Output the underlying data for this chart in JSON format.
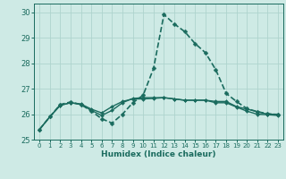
{
  "xlabel": "Humidex (Indice chaleur)",
  "xlim": [
    -0.5,
    23.5
  ],
  "ylim": [
    25.0,
    30.35
  ],
  "background_color": "#ceeae5",
  "grid_color": "#aed4ce",
  "line_color": "#1a6b5e",
  "xticks": [
    0,
    1,
    2,
    3,
    4,
    5,
    6,
    7,
    8,
    9,
    10,
    11,
    12,
    13,
    14,
    15,
    16,
    17,
    18,
    19,
    20,
    21,
    22,
    23
  ],
  "yticks": [
    25,
    26,
    27,
    28,
    29,
    30
  ],
  "series": [
    {
      "x": [
        0,
        1,
        2,
        3,
        4,
        5,
        6,
        7,
        8,
        9,
        10,
        11,
        12,
        13,
        14,
        15,
        16,
        17,
        18,
        19,
        20,
        21,
        22,
        23
      ],
      "y": [
        25.4,
        25.9,
        26.35,
        26.45,
        26.4,
        26.2,
        26.05,
        26.3,
        26.5,
        26.6,
        26.6,
        26.62,
        26.65,
        26.6,
        26.55,
        26.55,
        26.55,
        26.5,
        26.5,
        26.3,
        26.2,
        26.1,
        26.0,
        26.0
      ],
      "style": "-",
      "marker": "D",
      "markersize": 2.0,
      "linewidth": 1.0
    },
    {
      "x": [
        0,
        1,
        2,
        3,
        4,
        5,
        6,
        7,
        8,
        9,
        10,
        11,
        12,
        13,
        14,
        15,
        16,
        17,
        18,
        19,
        20,
        21,
        22,
        23
      ],
      "y": [
        25.4,
        25.9,
        26.35,
        26.45,
        26.38,
        26.15,
        25.95,
        26.15,
        26.45,
        26.62,
        26.65,
        26.65,
        26.65,
        26.6,
        26.55,
        26.55,
        26.55,
        26.45,
        26.45,
        26.28,
        26.12,
        26.0,
        25.98,
        25.95
      ],
      "style": "-",
      "marker": "D",
      "markersize": 2.0,
      "linewidth": 1.0
    },
    {
      "x": [
        0,
        1,
        2,
        3,
        4,
        5,
        6,
        7,
        8,
        9,
        10,
        11,
        12,
        13,
        14,
        15,
        16,
        17,
        18,
        19,
        20,
        21,
        22,
        23
      ],
      "y": [
        25.4,
        25.9,
        26.38,
        26.48,
        26.38,
        26.12,
        25.82,
        25.65,
        26.0,
        26.45,
        26.75,
        27.8,
        29.92,
        29.55,
        29.25,
        28.78,
        28.42,
        27.75,
        26.82,
        26.5,
        26.22,
        26.1,
        26.02,
        25.98
      ],
      "style": "--",
      "marker": "D",
      "markersize": 2.5,
      "linewidth": 1.2
    }
  ]
}
